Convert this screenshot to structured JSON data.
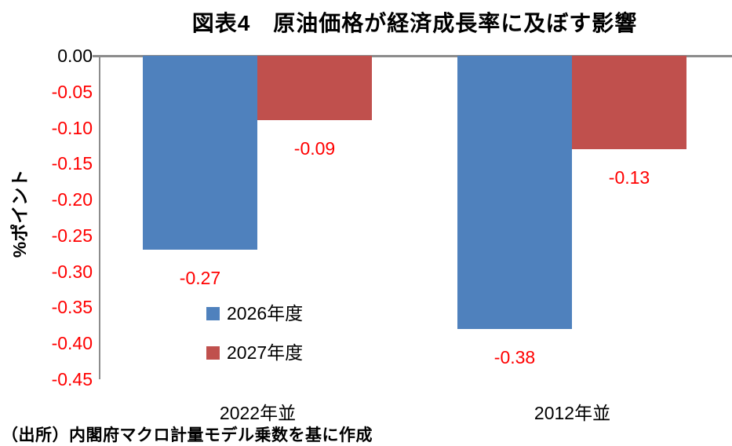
{
  "title": "図表4　原油価格が経済成長率に及ぼす影響",
  "source": "（出所）内閣府マクロ計量モデル乗数を基に作成",
  "chart_data": {
    "type": "bar",
    "title": "図表4　原油価格が経済成長率に及ぼす影響",
    "categories": [
      "2022年並",
      "2012年並"
    ],
    "series": [
      {
        "name": "2026年度",
        "color": "#4F81BD",
        "values": [
          -0.27,
          -0.38
        ],
        "labels": [
          "-0.27",
          "-0.38"
        ]
      },
      {
        "name": "2027年度",
        "color": "#C0504D",
        "values": [
          -0.09,
          -0.13
        ],
        "labels": [
          "-0.09",
          "-0.13"
        ]
      }
    ],
    "xlabel": "",
    "ylabel": "%ポイント",
    "ylim": [
      -0.45,
      0
    ],
    "ytick_step": 0.05,
    "yticks": [
      "0.00",
      "-0.05",
      "-0.10",
      "-0.15",
      "-0.20",
      "-0.25",
      "-0.30",
      "-0.35",
      "-0.40",
      "-0.45"
    ],
    "grid": false,
    "legend_position": "inside-bottom-left",
    "colors": {
      "axis_line": "#8C8C8C",
      "tick_zero": "#000000",
      "tick_negative": "#FF0000",
      "data_label": "#FF0000",
      "text": "#000000",
      "background": "#FFFFFF"
    }
  }
}
